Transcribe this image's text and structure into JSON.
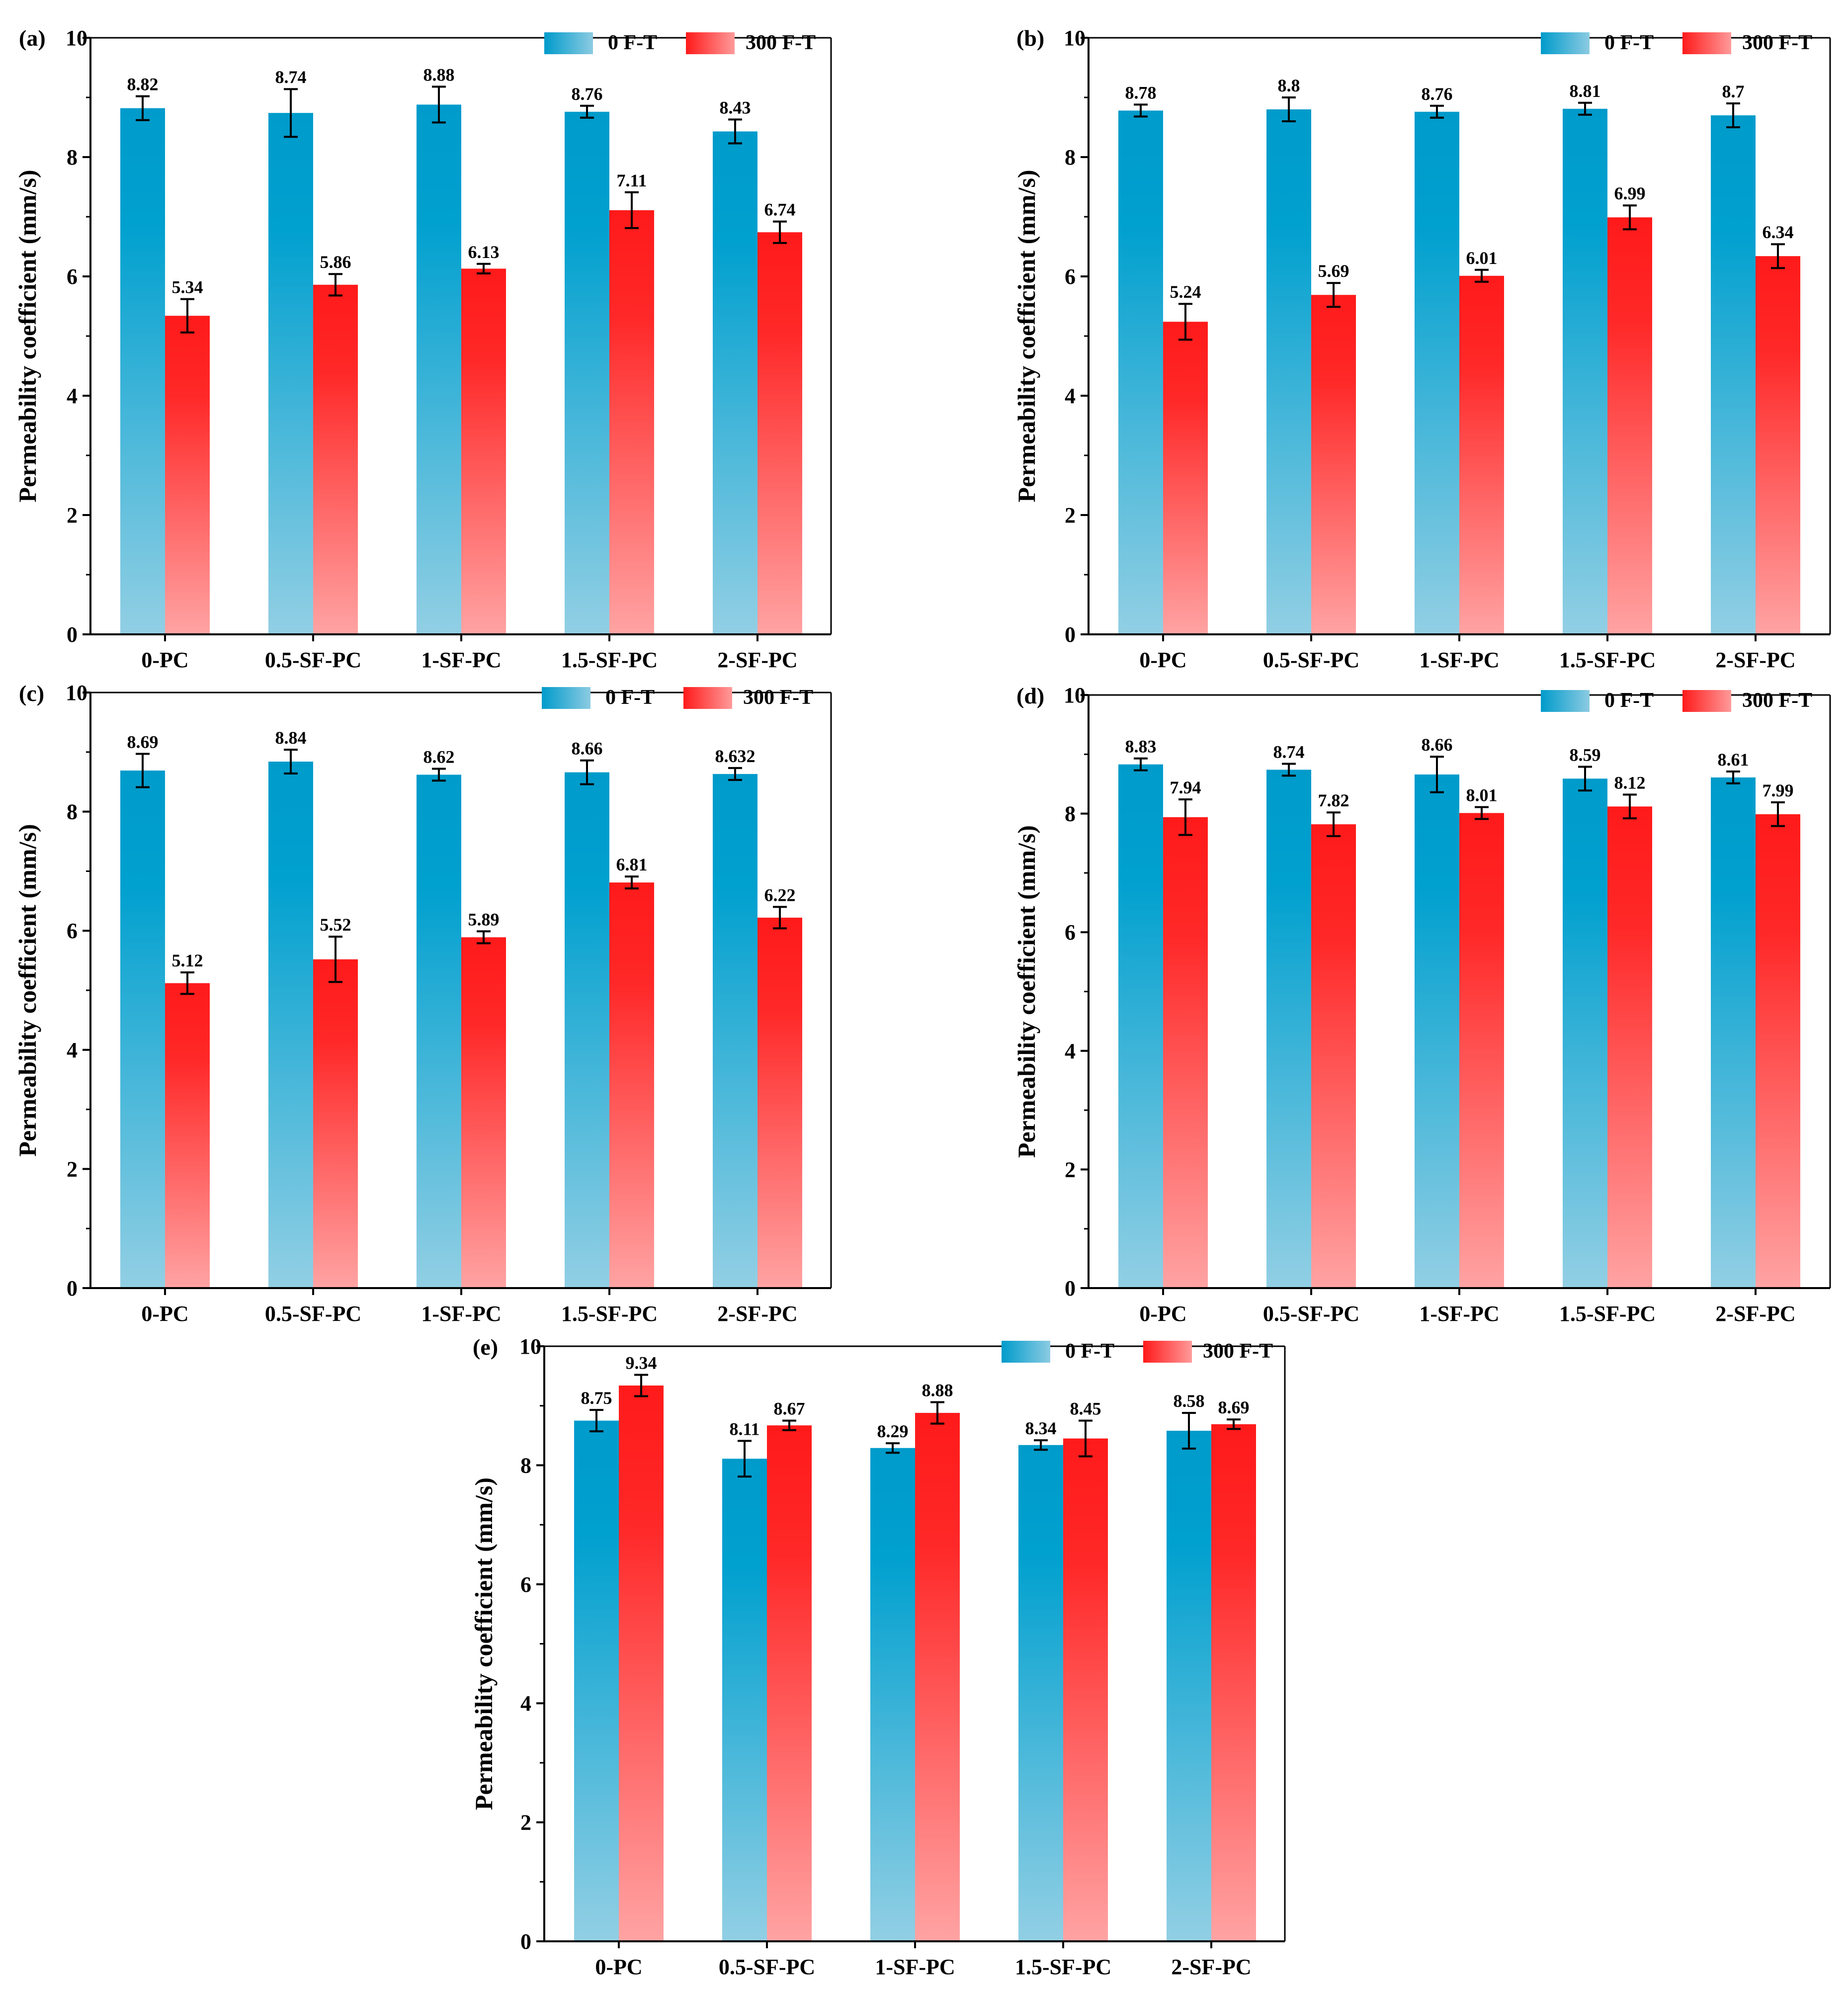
{
  "colors": {
    "blue_top": "#009bcb",
    "blue_bottom": "#8ccbe2",
    "red_top": "#ff1a1a",
    "red_bottom": "#ff9a9a",
    "axis": "#000000"
  },
  "chart_data": [
    {
      "panel": "(a)",
      "type": "bar",
      "categories": [
        "0-PC",
        "0.5-SF-PC",
        "1-SF-PC",
        "1.5-SF-PC",
        "2-SF-PC"
      ],
      "series": [
        {
          "name": "0 F-T",
          "values": [
            8.82,
            8.74,
            8.88,
            8.76,
            8.43
          ],
          "labels": [
            "8.82",
            "8.74",
            "8.88",
            "8.76",
            "8.43"
          ],
          "errors": [
            0.2,
            0.4,
            0.3,
            0.1,
            0.2
          ]
        },
        {
          "name": "300 F-T",
          "values": [
            5.34,
            5.86,
            6.13,
            7.11,
            6.74
          ],
          "labels": [
            "5.34",
            "5.86",
            "6.13",
            "7.11",
            "6.74"
          ],
          "errors": [
            0.28,
            0.18,
            0.08,
            0.3,
            0.18
          ]
        }
      ],
      "ylabel": "Permeability coefficient (mm/s)",
      "ylim": [
        0,
        10
      ],
      "yticks": [
        0,
        2,
        4,
        6,
        8,
        10
      ]
    },
    {
      "panel": "(b)",
      "type": "bar",
      "categories": [
        "0-PC",
        "0.5-SF-PC",
        "1-SF-PC",
        "1.5-SF-PC",
        "2-SF-PC"
      ],
      "series": [
        {
          "name": "0 F-T",
          "values": [
            8.78,
            8.8,
            8.76,
            8.81,
            8.7
          ],
          "labels": [
            "8.78",
            "8.8",
            "8.76",
            "8.81",
            "8.7"
          ],
          "errors": [
            0.1,
            0.2,
            0.1,
            0.1,
            0.2
          ]
        },
        {
          "name": "300 F-T",
          "values": [
            5.24,
            5.69,
            6.01,
            6.99,
            6.34
          ],
          "labels": [
            "5.24",
            "5.69",
            "6.01",
            "6.99",
            "6.34"
          ],
          "errors": [
            0.3,
            0.2,
            0.1,
            0.2,
            0.2
          ]
        }
      ],
      "ylabel": "Permeability coefficient (mm/s)",
      "ylim": [
        0,
        10
      ],
      "yticks": [
        0,
        2,
        4,
        6,
        8,
        10
      ]
    },
    {
      "panel": "(c)",
      "type": "bar",
      "categories": [
        "0-PC",
        "0.5-SF-PC",
        "1-SF-PC",
        "1.5-SF-PC",
        "2-SF-PC"
      ],
      "series": [
        {
          "name": "0 F-T",
          "values": [
            8.69,
            8.84,
            8.62,
            8.66,
            8.632
          ],
          "labels": [
            "8.69",
            "8.84",
            "8.62",
            "8.66",
            "8.632"
          ],
          "errors": [
            0.28,
            0.2,
            0.1,
            0.2,
            0.1
          ]
        },
        {
          "name": "300 F-T",
          "values": [
            5.12,
            5.52,
            5.89,
            6.81,
            6.22
          ],
          "labels": [
            "5.12",
            "5.52",
            "5.89",
            "6.81",
            "6.22"
          ],
          "errors": [
            0.18,
            0.38,
            0.1,
            0.1,
            0.18
          ]
        }
      ],
      "ylabel": "Permeability coefficient (mm/s)",
      "ylim": [
        0,
        10
      ],
      "yticks": [
        0,
        2,
        4,
        6,
        8,
        10
      ]
    },
    {
      "panel": "(d)",
      "type": "bar",
      "categories": [
        "0-PC",
        "0.5-SF-PC",
        "1-SF-PC",
        "1.5-SF-PC",
        "2-SF-PC"
      ],
      "series": [
        {
          "name": "0 F-T",
          "values": [
            8.83,
            8.74,
            8.66,
            8.59,
            8.61
          ],
          "labels": [
            "8.83",
            "8.74",
            "8.66",
            "8.59",
            "8.61"
          ],
          "errors": [
            0.1,
            0.1,
            0.3,
            0.2,
            0.1
          ]
        },
        {
          "name": "300 F-T",
          "values": [
            7.94,
            7.82,
            8.01,
            8.12,
            7.99
          ],
          "labels": [
            "7.94",
            "7.82",
            "8.01",
            "8.12",
            "7.99"
          ],
          "errors": [
            0.3,
            0.2,
            0.1,
            0.2,
            0.2
          ]
        }
      ],
      "ylabel": "Permeability coefficient (mm/s)",
      "ylim": [
        0,
        10
      ],
      "yticks": [
        0,
        2,
        4,
        6,
        8,
        10
      ]
    },
    {
      "panel": "(e)",
      "type": "bar",
      "categories": [
        "0-PC",
        "0.5-SF-PC",
        "1-SF-PC",
        "1.5-SF-PC",
        "2-SF-PC"
      ],
      "series": [
        {
          "name": "0 F-T",
          "values": [
            8.75,
            8.11,
            8.29,
            8.34,
            8.58
          ],
          "labels": [
            "8.75",
            "8.11",
            "8.29",
            "8.34",
            "8.58"
          ],
          "errors": [
            0.18,
            0.3,
            0.08,
            0.08,
            0.3
          ]
        },
        {
          "name": "300 F-T",
          "values": [
            9.34,
            8.67,
            8.88,
            8.45,
            8.69
          ],
          "labels": [
            "9.34",
            "8.67",
            "8.88",
            "8.45",
            "8.69"
          ],
          "errors": [
            0.18,
            0.08,
            0.18,
            0.3,
            0.08
          ]
        }
      ],
      "ylabel": "Permeability coefficient (mm/s)",
      "ylim": [
        0,
        10
      ],
      "yticks": [
        0,
        2,
        4,
        6,
        8,
        10
      ]
    }
  ]
}
